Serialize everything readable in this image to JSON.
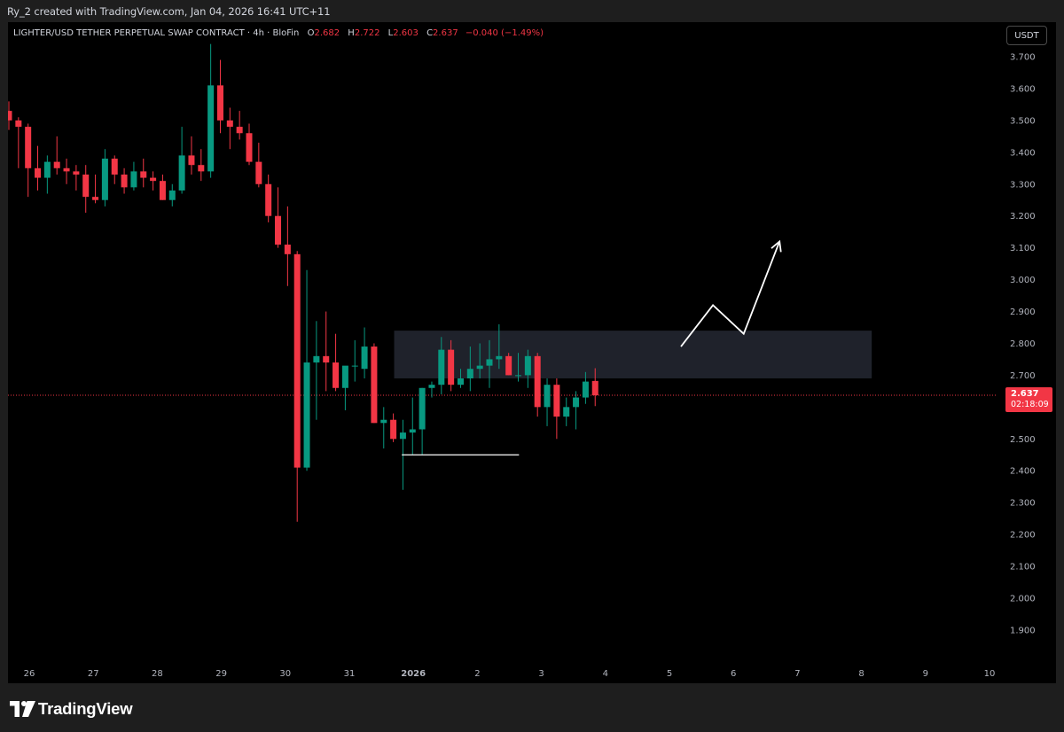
{
  "header": {
    "credit": "Ry_2 created with TradingView.com, Jan 04, 2026 16:41 UTC+11"
  },
  "legend": {
    "symbol": "LIGHTER/USD TETHER PERPETUAL SWAP CONTRACT · 4h · BloFin",
    "open_label": "O",
    "open": "2.682",
    "high_label": "H",
    "high": "2.722",
    "low_label": "L",
    "low": "2.603",
    "close_label": "C",
    "close": "2.637",
    "change": "−0.040 (−1.49%)"
  },
  "currency": "USDT",
  "price_tag": {
    "price": "2.637",
    "countdown": "02:18:09"
  },
  "footer": {
    "brand": "TradingView"
  },
  "colors": {
    "up": "#089981",
    "down": "#f23645",
    "background": "#000000",
    "axis_text": "#b2b5be",
    "annotation": "#ffffff",
    "zone": "#2a2e39"
  },
  "chart_data": {
    "type": "candlestick",
    "y_ticks": [
      "3.700",
      "3.600",
      "3.500",
      "3.400",
      "3.300",
      "3.200",
      "3.100",
      "3.000",
      "2.900",
      "2.800",
      "2.700",
      "2.600",
      "2.500",
      "2.400",
      "2.300",
      "2.200",
      "2.100",
      "2.000",
      "1.900"
    ],
    "x_ticks": [
      {
        "label": "26",
        "day": 26
      },
      {
        "label": "27",
        "day": 27
      },
      {
        "label": "28",
        "day": 28
      },
      {
        "label": "29",
        "day": 29
      },
      {
        "label": "30",
        "day": 30
      },
      {
        "label": "31",
        "day": 31
      },
      {
        "label": "2026",
        "day": 32
      },
      {
        "label": "2",
        "day": 33
      },
      {
        "label": "3",
        "day": 34
      },
      {
        "label": "4",
        "day": 35
      },
      {
        "label": "5",
        "day": 36
      },
      {
        "label": "6",
        "day": 37
      },
      {
        "label": "7",
        "day": 38
      },
      {
        "label": "8",
        "day": 39
      },
      {
        "label": "9",
        "day": 40
      },
      {
        "label": "10",
        "day": 41
      }
    ],
    "last_price": 2.637,
    "candles": [
      [
        3.53,
        3.56,
        3.47,
        3.5
      ],
      [
        3.5,
        3.51,
        3.35,
        3.48
      ],
      [
        3.48,
        3.49,
        3.26,
        3.35
      ],
      [
        3.35,
        3.42,
        3.28,
        3.32
      ],
      [
        3.32,
        3.39,
        3.27,
        3.37
      ],
      [
        3.37,
        3.45,
        3.33,
        3.35
      ],
      [
        3.35,
        3.38,
        3.3,
        3.34
      ],
      [
        3.34,
        3.36,
        3.28,
        3.33
      ],
      [
        3.33,
        3.36,
        3.21,
        3.26
      ],
      [
        3.26,
        3.33,
        3.24,
        3.25
      ],
      [
        3.25,
        3.41,
        3.23,
        3.38
      ],
      [
        3.38,
        3.39,
        3.3,
        3.33
      ],
      [
        3.33,
        3.35,
        3.27,
        3.29
      ],
      [
        3.29,
        3.37,
        3.28,
        3.34
      ],
      [
        3.34,
        3.38,
        3.29,
        3.32
      ],
      [
        3.32,
        3.34,
        3.28,
        3.31
      ],
      [
        3.31,
        3.33,
        3.25,
        3.25
      ],
      [
        3.25,
        3.3,
        3.23,
        3.28
      ],
      [
        3.28,
        3.48,
        3.27,
        3.39
      ],
      [
        3.39,
        3.45,
        3.33,
        3.36
      ],
      [
        3.36,
        3.41,
        3.31,
        3.34
      ],
      [
        3.34,
        3.74,
        3.32,
        3.61
      ],
      [
        3.61,
        3.69,
        3.46,
        3.5
      ],
      [
        3.5,
        3.54,
        3.41,
        3.48
      ],
      [
        3.48,
        3.53,
        3.44,
        3.46
      ],
      [
        3.46,
        3.49,
        3.36,
        3.37
      ],
      [
        3.37,
        3.43,
        3.29,
        3.3
      ],
      [
        3.3,
        3.33,
        3.18,
        3.2
      ],
      [
        3.2,
        3.29,
        3.1,
        3.11
      ],
      [
        3.11,
        3.23,
        2.98,
        3.08
      ],
      [
        3.08,
        3.09,
        2.24,
        2.41
      ],
      [
        2.41,
        3.03,
        2.4,
        2.74
      ],
      [
        2.74,
        2.87,
        2.56,
        2.76
      ],
      [
        2.76,
        2.9,
        2.65,
        2.74
      ],
      [
        2.74,
        2.83,
        2.65,
        2.66
      ],
      [
        2.66,
        2.72,
        2.59,
        2.73
      ],
      [
        2.73,
        2.81,
        2.68,
        2.73
      ],
      [
        2.72,
        2.85,
        2.69,
        2.79
      ],
      [
        2.79,
        2.8,
        2.55,
        2.55
      ],
      [
        2.55,
        2.6,
        2.47,
        2.56
      ],
      [
        2.56,
        2.58,
        2.49,
        2.5
      ],
      [
        2.5,
        2.56,
        2.34,
        2.52
      ],
      [
        2.52,
        2.63,
        2.45,
        2.53
      ],
      [
        2.53,
        2.66,
        2.45,
        2.66
      ],
      [
        2.66,
        2.68,
        2.63,
        2.67
      ],
      [
        2.67,
        2.82,
        2.64,
        2.78
      ],
      [
        2.78,
        2.81,
        2.65,
        2.67
      ],
      [
        2.67,
        2.72,
        2.66,
        2.69
      ],
      [
        2.69,
        2.79,
        2.65,
        2.72
      ],
      [
        2.72,
        2.8,
        2.69,
        2.73
      ],
      [
        2.73,
        2.81,
        2.66,
        2.75
      ],
      [
        2.75,
        2.86,
        2.72,
        2.76
      ],
      [
        2.76,
        2.77,
        2.7,
        2.7
      ],
      [
        2.7,
        2.77,
        2.68,
        2.7
      ],
      [
        2.7,
        2.78,
        2.66,
        2.76
      ],
      [
        2.76,
        2.77,
        2.57,
        2.6
      ],
      [
        2.6,
        2.69,
        2.54,
        2.67
      ],
      [
        2.67,
        2.69,
        2.5,
        2.57
      ],
      [
        2.57,
        2.63,
        2.54,
        2.6
      ],
      [
        2.6,
        2.65,
        2.53,
        2.63
      ],
      [
        2.63,
        2.71,
        2.61,
        2.68
      ],
      [
        2.682,
        2.722,
        2.603,
        2.637
      ]
    ],
    "annotations": {
      "zone": {
        "day_start": 31.7,
        "day_end": 39.16,
        "price_low": 2.69,
        "price_high": 2.84
      },
      "support_line": {
        "day_start": 31.82,
        "day_end": 33.65,
        "price": 2.45
      },
      "arrow_path": [
        [
          36.18,
          2.79
        ],
        [
          36.68,
          2.92
        ],
        [
          37.16,
          2.83
        ],
        [
          37.72,
          3.12
        ]
      ]
    }
  }
}
